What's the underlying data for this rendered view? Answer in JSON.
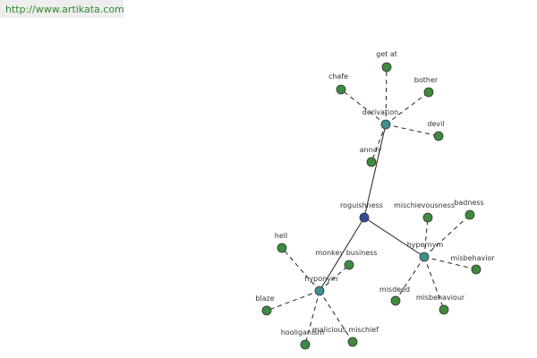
{
  "header": {
    "url": "http://www.artikata.com"
  },
  "nodes": [
    {
      "label": "roguishness"
    },
    {
      "label": "derivation"
    },
    {
      "label": "annoy"
    },
    {
      "label": "get at"
    },
    {
      "label": "chafe"
    },
    {
      "label": "bother"
    },
    {
      "label": "devil"
    },
    {
      "label": "hypernym"
    },
    {
      "label": "mischievousness"
    },
    {
      "label": "badness"
    },
    {
      "label": "misbehavior"
    },
    {
      "label": "misbehaviour"
    },
    {
      "label": "misdeed"
    },
    {
      "label": "hyponym"
    },
    {
      "label": "monkey business"
    },
    {
      "label": "hell"
    },
    {
      "label": "blaze"
    },
    {
      "label": "hooliganism"
    },
    {
      "label": "malicious mischief"
    }
  ]
}
